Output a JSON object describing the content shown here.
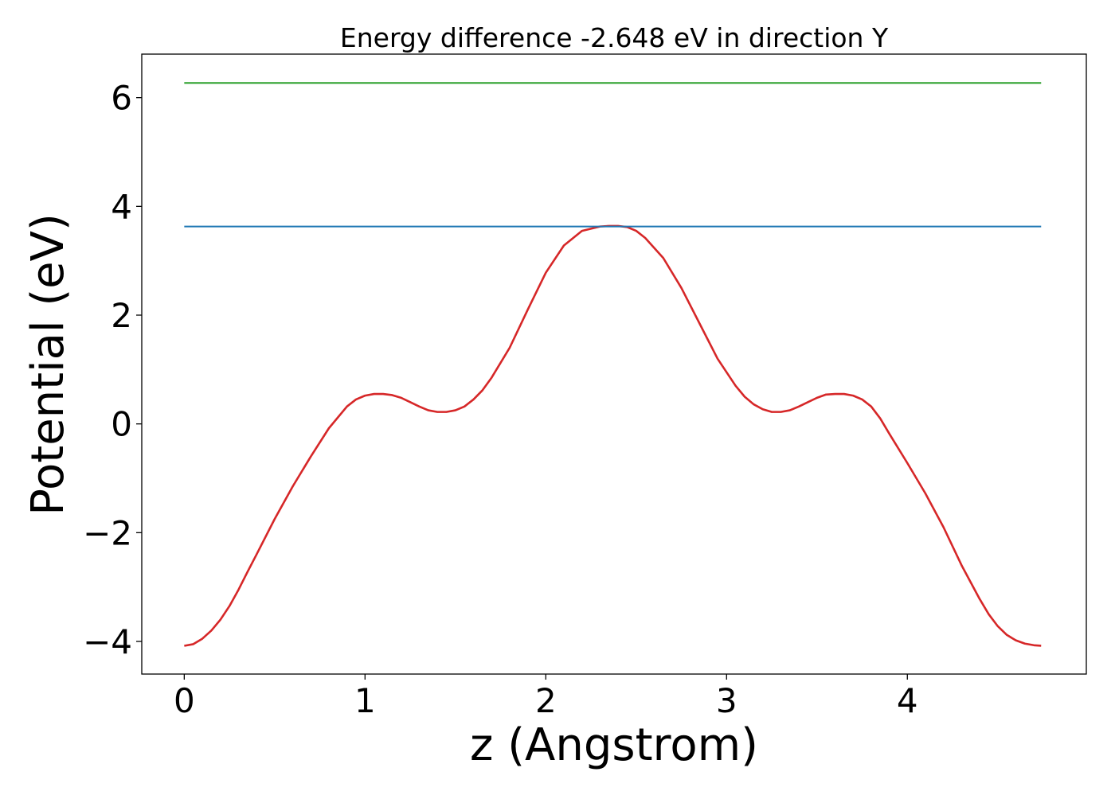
{
  "chart_data": {
    "type": "line",
    "title": "Energy difference -2.648 eV in direction Y",
    "xlabel": "z (Angstrom)",
    "ylabel": "Potential (eV)",
    "xlim": [
      -0.235,
      4.99
    ],
    "ylim": [
      -4.6,
      6.8
    ],
    "xticks": [
      0,
      1,
      2,
      3,
      4
    ],
    "yticks": [
      -4,
      -2,
      0,
      2,
      4,
      6
    ],
    "xtick_labels": [
      "0",
      "1",
      "2",
      "3",
      "4"
    ],
    "ytick_labels": [
      "−4",
      "−2",
      "0",
      "2",
      "4",
      "6"
    ],
    "grid": false,
    "legend": "none",
    "series": [
      {
        "color": "#d62728",
        "x": [
          0,
          0.05,
          0.1,
          0.15,
          0.2,
          0.25,
          0.3,
          0.35,
          0.4,
          0.5,
          0.6,
          0.7,
          0.8,
          0.9,
          0.95,
          1.0,
          1.05,
          1.1,
          1.15,
          1.2,
          1.25,
          1.3,
          1.35,
          1.4,
          1.45,
          1.5,
          1.55,
          1.6,
          1.65,
          1.7,
          1.8,
          1.9,
          2.0,
          2.1,
          2.2,
          2.3,
          2.35,
          2.4,
          2.45,
          2.5,
          2.55,
          2.65,
          2.75,
          2.85,
          2.95,
          3.05,
          3.1,
          3.15,
          3.2,
          3.25,
          3.3,
          3.35,
          3.4,
          3.45,
          3.5,
          3.55,
          3.6,
          3.65,
          3.7,
          3.75,
          3.8,
          3.85,
          3.9,
          4.0,
          4.1,
          4.2,
          4.3,
          4.4,
          4.45,
          4.5,
          4.55,
          4.6,
          4.65,
          4.7,
          4.74
        ],
        "y": [
          -4.08,
          -4.05,
          -3.95,
          -3.8,
          -3.6,
          -3.35,
          -3.05,
          -2.72,
          -2.4,
          -1.75,
          -1.15,
          -0.6,
          -0.08,
          0.32,
          0.45,
          0.52,
          0.55,
          0.55,
          0.53,
          0.48,
          0.4,
          0.32,
          0.25,
          0.22,
          0.22,
          0.25,
          0.32,
          0.45,
          0.62,
          0.85,
          1.4,
          2.1,
          2.78,
          3.28,
          3.55,
          3.63,
          3.64,
          3.64,
          3.62,
          3.55,
          3.42,
          3.05,
          2.5,
          1.85,
          1.2,
          0.7,
          0.5,
          0.36,
          0.27,
          0.22,
          0.22,
          0.25,
          0.32,
          0.4,
          0.48,
          0.54,
          0.55,
          0.55,
          0.52,
          0.45,
          0.32,
          0.1,
          -0.18,
          -0.72,
          -1.28,
          -1.9,
          -2.6,
          -3.22,
          -3.5,
          -3.72,
          -3.88,
          -3.98,
          -4.04,
          -4.07,
          -4.08
        ]
      },
      {
        "color": "#1f77b4",
        "x": [
          0,
          4.74
        ],
        "y": [
          3.63,
          3.63
        ]
      },
      {
        "color": "#2ca02c",
        "x": [
          0,
          4.74
        ],
        "y": [
          6.27,
          6.27
        ]
      }
    ]
  }
}
